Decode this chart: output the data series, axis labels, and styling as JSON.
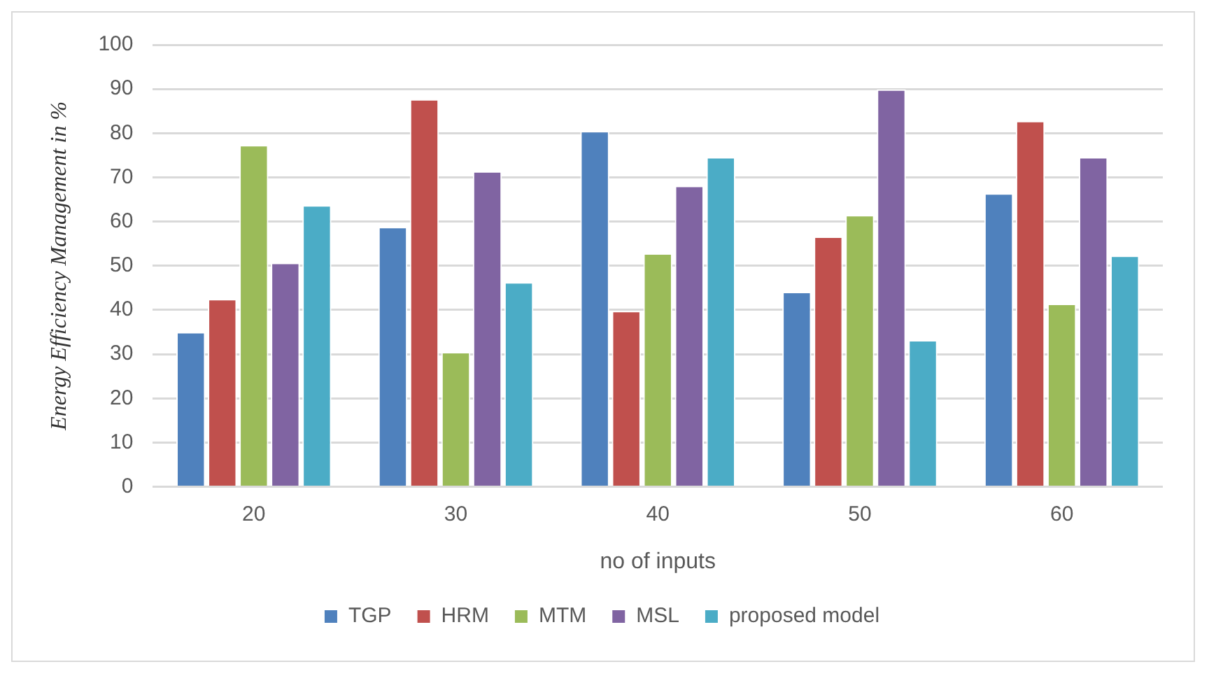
{
  "chart_data": {
    "type": "bar",
    "xlabel": "no of inputs",
    "ylabel": "Energy Efficiency Management in %",
    "categories": [
      "20",
      "30",
      "40",
      "50",
      "60"
    ],
    "series": [
      {
        "name": "TGP",
        "color": "#4f81bd",
        "values": [
          35,
          58.8,
          80.5,
          44.1,
          66.4
        ]
      },
      {
        "name": "HRM",
        "color": "#c0504d",
        "values": [
          42.5,
          87.7,
          39.8,
          56.6,
          82.8
        ]
      },
      {
        "name": "MTM",
        "color": "#9bbb59",
        "values": [
          77.3,
          30.5,
          52.8,
          61.5,
          41.4
        ]
      },
      {
        "name": "MSL",
        "color": "#8064a2",
        "values": [
          50.7,
          71.4,
          68.1,
          89.9,
          74.6
        ]
      },
      {
        "name": "proposed model",
        "color": "#4bacc6",
        "values": [
          63.7,
          46.3,
          74.6,
          33.2,
          52.3
        ]
      }
    ],
    "ylim": [
      0,
      100
    ],
    "yticks": [
      0,
      10,
      20,
      30,
      40,
      50,
      60,
      70,
      80,
      90,
      100
    ],
    "grid": "y",
    "legend": "bottom"
  }
}
